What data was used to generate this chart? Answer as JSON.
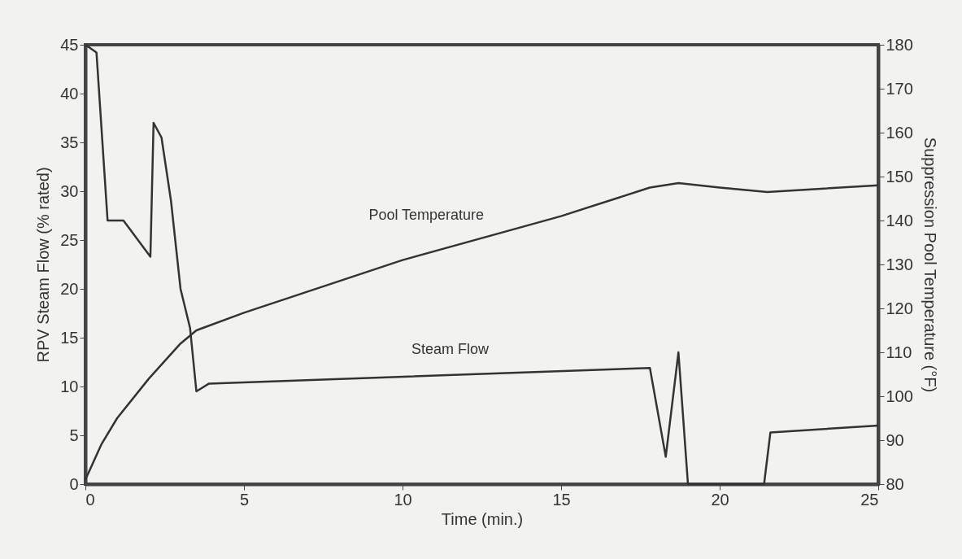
{
  "chart_data": {
    "type": "line",
    "xlabel": "Time (min.)",
    "ylabel": "RPV Steam Flow (% rated)",
    "y2label": "Suppression Pool Temperature (°F)",
    "xlim": [
      0,
      25
    ],
    "xticks": [
      0,
      5,
      10,
      15,
      20,
      25
    ],
    "ylim": [
      0,
      45
    ],
    "yticks": [
      0,
      5,
      10,
      15,
      20,
      25,
      30,
      35,
      40,
      45
    ],
    "y2lim": [
      80,
      180
    ],
    "y2ticks": [
      80,
      90,
      100,
      110,
      120,
      130,
      140,
      150,
      160,
      170,
      180
    ],
    "grid": false,
    "marker": "none",
    "line_style": "solid",
    "series": [
      {
        "name": "Steam Flow",
        "color": "#333333",
        "x": [
          0,
          0.35,
          0.7,
          1.2,
          2.05,
          2.15,
          2.4,
          2.7,
          3.0,
          3.3,
          3.5,
          3.9,
          17.8,
          18.3,
          18.7,
          19.0,
          21.4,
          21.6,
          25
        ],
        "values": [
          45,
          44.2,
          27,
          27,
          23.3,
          37,
          35.5,
          29,
          20,
          16,
          9.5,
          10.3,
          11.9,
          2.8,
          13.5,
          0,
          0,
          5.3,
          6
        ]
      },
      {
        "name": "Pool Temperature",
        "color": "#333333",
        "axis": "y2",
        "x": [
          0,
          0.5,
          1,
          2,
          3,
          3.5,
          5,
          10,
          15,
          17.8,
          18.7,
          20,
          21.5,
          25
        ],
        "values": [
          81,
          89,
          95,
          104,
          112,
          115,
          119,
          131,
          141,
          147.5,
          148.5,
          147.5,
          146.5,
          148
        ]
      }
    ]
  }
}
